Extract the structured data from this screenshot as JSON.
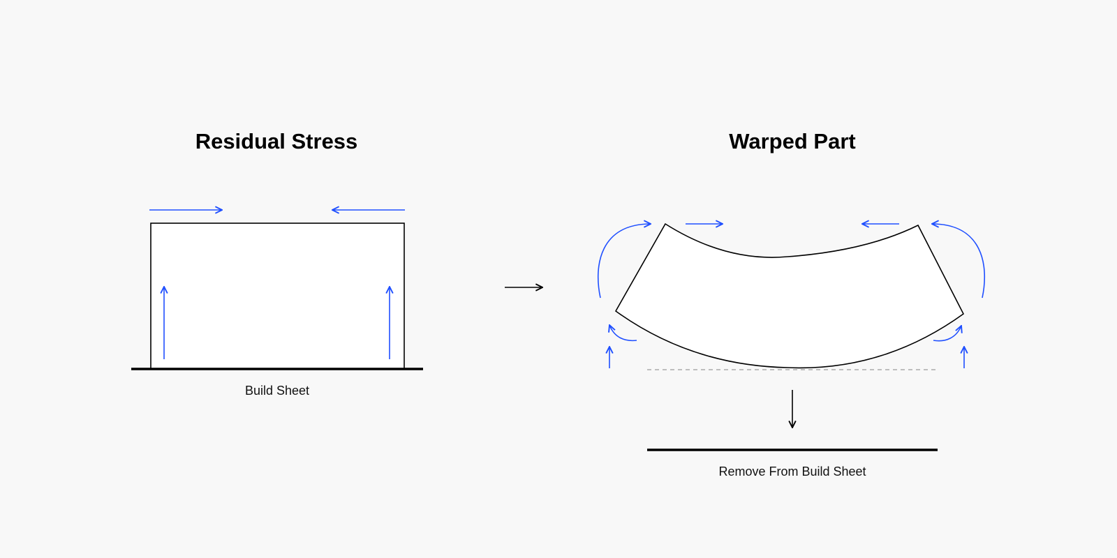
{
  "left_panel": {
    "title": "Residual Stress",
    "caption": "Build Sheet"
  },
  "right_panel": {
    "title": "Warped Part",
    "caption": "Remove From Build Sheet"
  },
  "colors": {
    "background": "#f8f8f8",
    "stress_arrows": "#1f4fff",
    "outline": "#000000",
    "reference_line": "#aaaaaa"
  },
  "icons": [
    "arrow-right-icon",
    "arrow-left-icon",
    "arrow-up-icon",
    "arrow-down-icon",
    "curved-arrow-icon"
  ]
}
